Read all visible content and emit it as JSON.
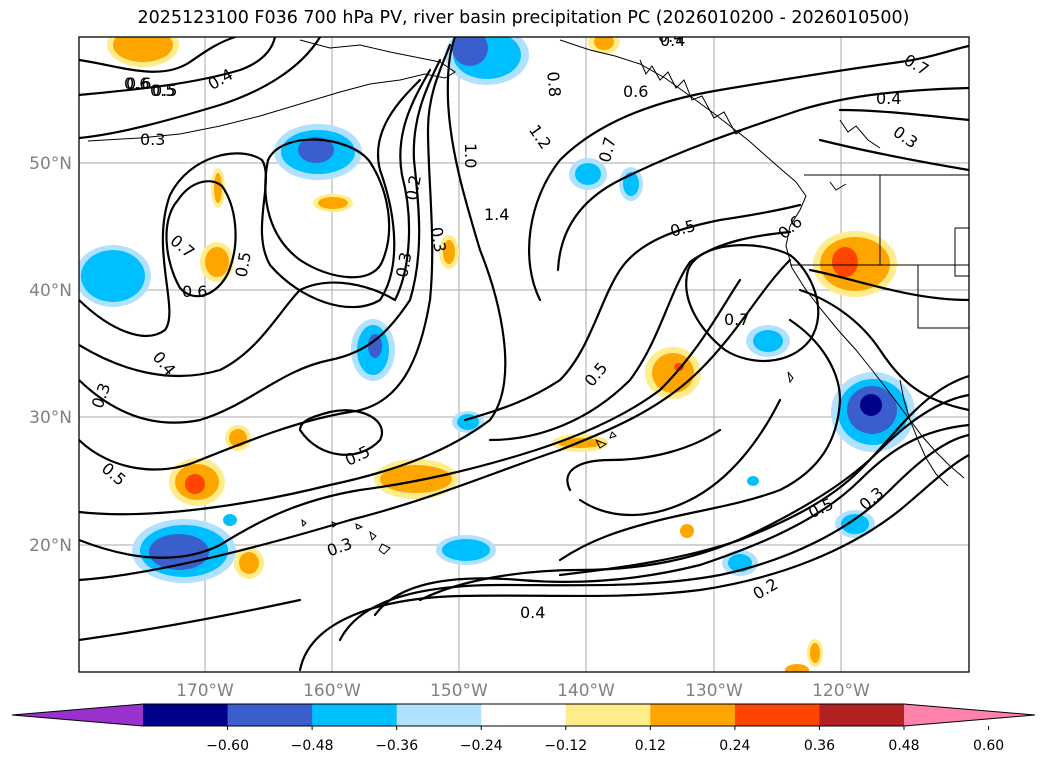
{
  "title": "2025123100 F036 700 hPa PV, river basin precipitation PC (2026010200 - 2026010500)",
  "lon_ticks": [
    "170°W",
    "160°W",
    "150°W",
    "140°W",
    "130°W",
    "120°W"
  ],
  "lat_ticks": [
    "50°N",
    "40°N",
    "30°N",
    "20°N"
  ],
  "colorbar": {
    "labels": [
      "−0.60",
      "−0.48",
      "−0.36",
      "−0.24",
      "−0.12",
      "0.12",
      "0.24",
      "0.36",
      "0.48",
      "0.60"
    ],
    "colors": [
      "#9932cc",
      "#00008b",
      "#3a5fcd",
      "#00bfff",
      "#b0e2ff",
      "#ffffff",
      "#ffec8b",
      "#ffa500",
      "#ff4500",
      "#b22222",
      "#ff82ab"
    ]
  },
  "contour_labels": [
    {
      "text": "0.6"
    },
    {
      "text": "0.5"
    },
    {
      "text": "0.4"
    },
    {
      "text": "0.3"
    },
    {
      "text": "0.7"
    },
    {
      "text": "0.6"
    },
    {
      "text": "0.5"
    },
    {
      "text": "0.3"
    },
    {
      "text": "0.4"
    },
    {
      "text": "0.5"
    },
    {
      "text": "0.3"
    },
    {
      "text": "0.3"
    },
    {
      "text": "0.2"
    },
    {
      "text": "0.3"
    },
    {
      "text": "0.5"
    },
    {
      "text": "1.0"
    },
    {
      "text": "1.4"
    },
    {
      "text": "1.2"
    },
    {
      "text": "0.8"
    },
    {
      "text": "0.7"
    },
    {
      "text": "0.6"
    },
    {
      "text": "0.4"
    },
    {
      "text": "0.5"
    },
    {
      "text": "0.6"
    },
    {
      "text": "0.7"
    },
    {
      "text": "0.4"
    },
    {
      "text": "0.3"
    },
    {
      "text": "0.7"
    },
    {
      "text": "0.5"
    },
    {
      "text": "0.5"
    },
    {
      "text": "0.3"
    },
    {
      "text": "0.2"
    },
    {
      "text": "0.4"
    },
    {
      "text": "0.4"
    },
    {
      "text": "0.5"
    },
    {
      "text": "0.6"
    }
  ]
}
